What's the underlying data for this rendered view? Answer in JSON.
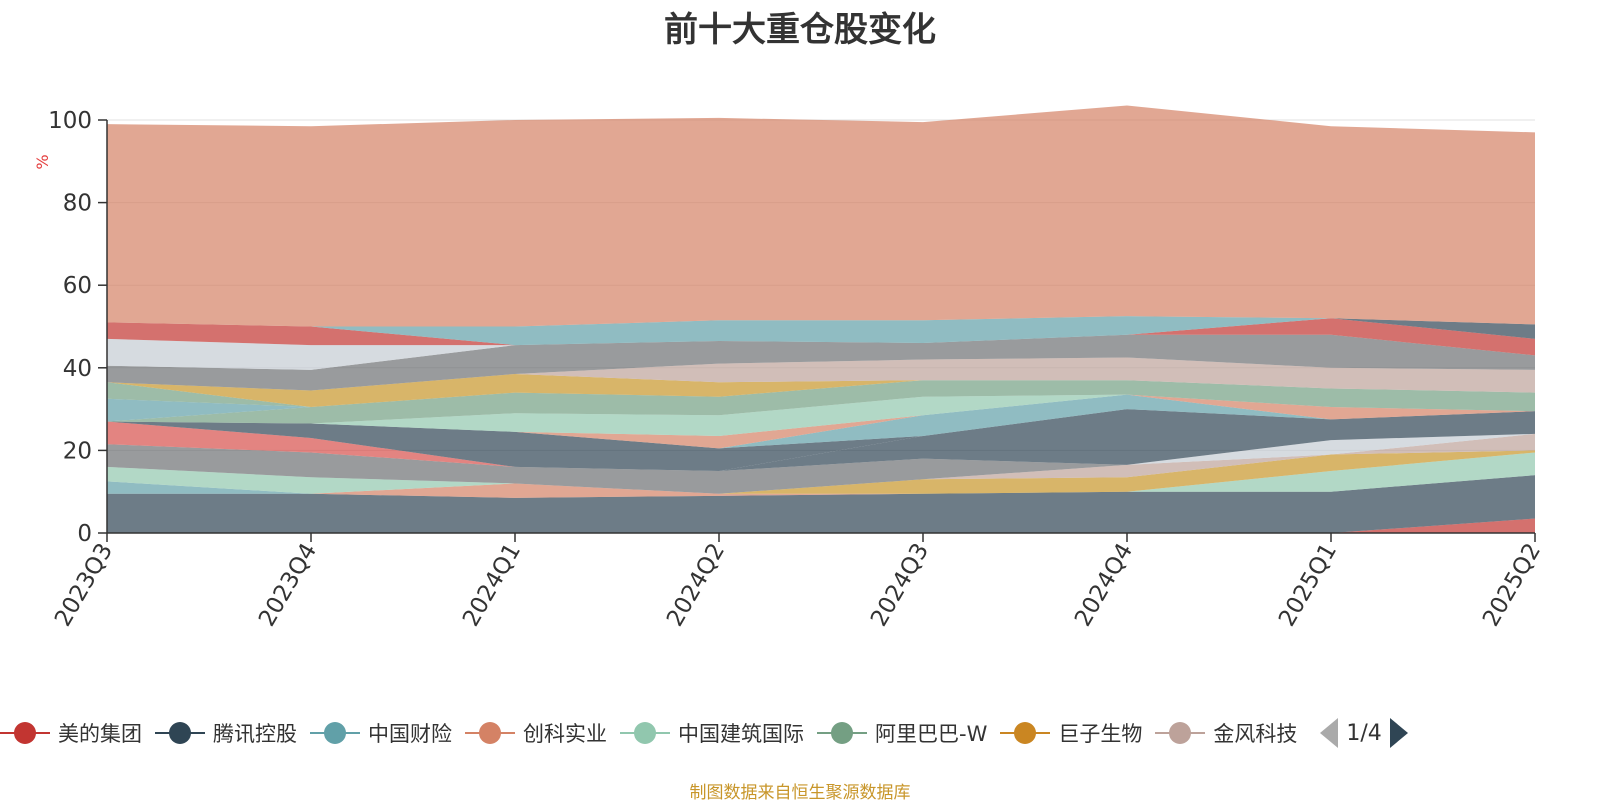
{
  "title": "前十大重仓股变化",
  "source_note": "制图数据来自恒生聚源数据库",
  "legend_pager": {
    "text": "1/4"
  },
  "icons": {
    "prev": "triangle-left-icon",
    "next": "triangle-right-icon"
  },
  "chart_data": {
    "type": "area",
    "stacked": true,
    "title": "前十大重仓股变化",
    "ylabel": "%",
    "ylim": [
      0,
      100
    ],
    "yticks": [
      0,
      20,
      40,
      60,
      80,
      100
    ],
    "grid": true,
    "categories": [
      "2023Q3",
      "2023Q4",
      "2024Q1",
      "2024Q2",
      "2024Q3",
      "2024Q4",
      "2025Q1",
      "2025Q2"
    ],
    "bands": [
      {
        "color": "#c23531",
        "values": [
          0,
          0,
          0,
          0,
          0,
          0,
          0,
          3.5
        ]
      },
      {
        "color": "#2f4554",
        "values": [
          9.5,
          9.5,
          8.5,
          9.0,
          9.5,
          10.0,
          10.0,
          10.5
        ]
      },
      {
        "color": "#61a0a8",
        "values": [
          3.0,
          0,
          0,
          0,
          0,
          0,
          0,
          0
        ]
      },
      {
        "color": "#d48265",
        "values": [
          0,
          0,
          3.5,
          0.5,
          0,
          0,
          0,
          0
        ]
      },
      {
        "color": "#91c7ae",
        "values": [
          3.5,
          4.0,
          0,
          0,
          0,
          0,
          5.0,
          5.5
        ]
      },
      {
        "color": "#c8962a",
        "values": [
          0,
          0,
          0,
          0,
          3.5,
          3.5,
          4.0,
          0.5
        ]
      },
      {
        "color": "#bda29a",
        "values": [
          0,
          0,
          0,
          0,
          0,
          3.0,
          0,
          4.0
        ]
      },
      {
        "color": "#6e7074",
        "values": [
          5.5,
          6.0,
          4.0,
          5.5,
          5.0,
          0,
          0,
          0
        ]
      },
      {
        "color": "#c4ccd3",
        "values": [
          0,
          0,
          0,
          0,
          0,
          0,
          3.5,
          0
        ]
      },
      {
        "color": "#2f4554",
        "values": [
          0,
          0,
          0,
          0,
          5.5,
          13.5,
          5.0,
          5.5
        ]
      },
      {
        "color": "#d7504b",
        "values": [
          5.5,
          3.5,
          0,
          0,
          0,
          0,
          0,
          0
        ]
      },
      {
        "color": "#2f4554",
        "values": [
          0,
          3.5,
          8.5,
          5.5,
          0,
          0,
          0,
          0
        ]
      },
      {
        "color": "#61a0a8",
        "values": [
          0,
          0,
          0,
          0,
          5.0,
          3.5,
          0,
          0
        ]
      },
      {
        "color": "#d48265",
        "values": [
          0,
          0,
          0,
          3.0,
          0,
          0,
          3.0,
          0
        ]
      },
      {
        "color": "#91c7ae",
        "values": [
          0,
          0,
          4.5,
          5.0,
          4.5,
          0,
          0,
          0
        ]
      },
      {
        "color": "#749f83",
        "values": [
          0,
          4.0,
          5.0,
          4.5,
          4.0,
          3.5,
          4.5,
          4.5
        ]
      },
      {
        "color": "#61a0a8",
        "values": [
          5.5,
          0,
          0,
          0,
          0,
          0,
          0,
          0
        ]
      },
      {
        "color": "#749f83",
        "values": [
          4.0,
          0,
          0,
          0,
          0,
          0,
          0,
          0
        ]
      },
      {
        "color": "#c8962a",
        "values": [
          0,
          4.0,
          4.5,
          3.5,
          0,
          0,
          0,
          0
        ]
      },
      {
        "color": "#bda29a",
        "values": [
          0,
          0,
          0,
          4.5,
          5.0,
          5.5,
          5.0,
          5.5
        ]
      },
      {
        "color": "#6e7074",
        "values": [
          4.0,
          5.0,
          7.0,
          5.5,
          4.0,
          5.5,
          8.0,
          3.5
        ]
      },
      {
        "color": "#c4ccd3",
        "values": [
          6.5,
          6.0,
          0,
          0,
          0,
          0,
          0,
          0
        ]
      },
      {
        "color": "#c23531",
        "values": [
          4.0,
          4.5,
          0,
          0,
          0,
          0,
          4.0,
          4.0
        ]
      },
      {
        "color": "#61a0a8",
        "values": [
          0,
          0,
          4.5,
          5.0,
          5.5,
          4.5,
          0,
          0
        ]
      },
      {
        "color": "#2f4554",
        "values": [
          0,
          0,
          0,
          0,
          0,
          0,
          0,
          3.5
        ]
      },
      {
        "color": "#d48265",
        "values": [
          48.0,
          48.5,
          50.0,
          49.0,
          48.0,
          51.0,
          46.5,
          46.5
        ]
      }
    ],
    "series": [
      {
        "name": "美的集团",
        "color": "#c23531"
      },
      {
        "name": "腾讯控股",
        "color": "#2f4554"
      },
      {
        "name": "中国财险",
        "color": "#61a0a8"
      },
      {
        "name": "创科实业",
        "color": "#d48265"
      },
      {
        "name": "中国建筑国际",
        "color": "#91c7ae"
      },
      {
        "name": "阿里巴巴-W",
        "color": "#749f83"
      },
      {
        "name": "巨子生物",
        "color": "#ca8622"
      },
      {
        "name": "金风科技",
        "color": "#bda29a"
      }
    ]
  }
}
